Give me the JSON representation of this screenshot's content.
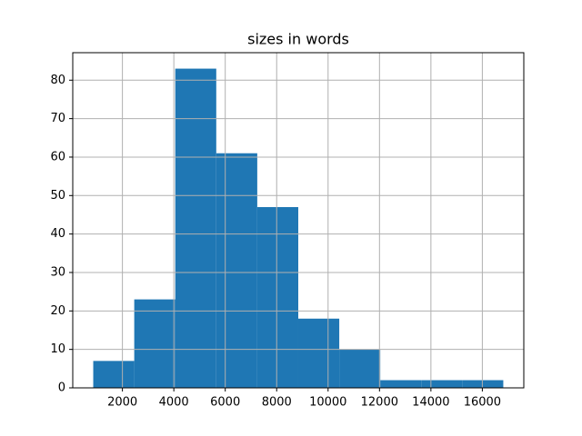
{
  "chart_data": {
    "type": "histogram",
    "title": "sizes in words",
    "bins": [
      865,
      2460,
      4055,
      5650,
      7245,
      8840,
      10435,
      12030,
      13625,
      15220,
      16815
    ],
    "values": [
      7,
      23,
      83,
      61,
      47,
      18,
      10,
      2,
      2,
      2
    ],
    "color": "#1f77b4",
    "xlim": [
      68,
      17613
    ],
    "xticks": [
      2000,
      4000,
      6000,
      8000,
      10000,
      12000,
      14000,
      16000
    ],
    "ylim": [
      0,
      87.15
    ],
    "yticks": [
      0,
      10,
      20,
      30,
      40,
      50,
      60,
      70,
      80
    ],
    "grid": true
  }
}
